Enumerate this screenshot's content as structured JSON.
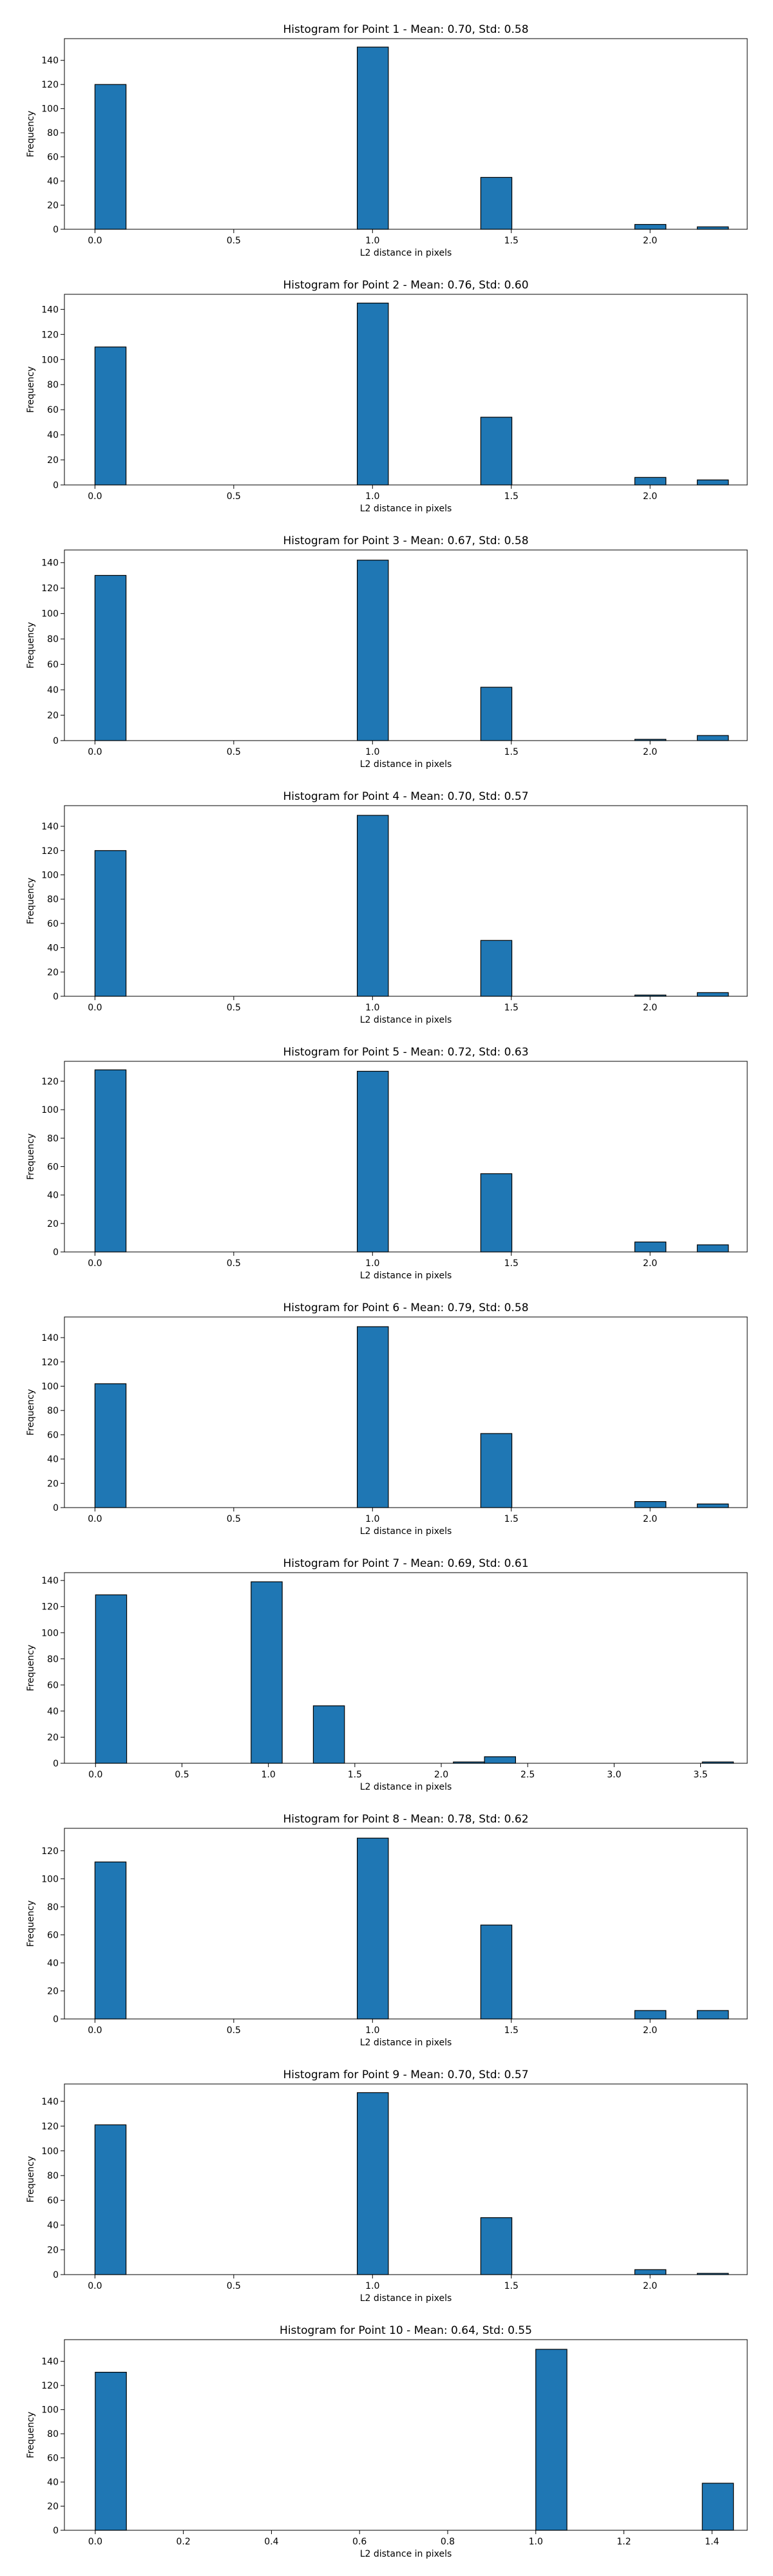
{
  "chart_data": [
    {
      "type": "bar",
      "title": "Histogram for Point 1 - Mean: 0.70, Std: 0.58",
      "xlabel": "L2 distance in pixels",
      "ylabel": "Frequency",
      "xlim": [
        -0.11,
        2.35
      ],
      "ylim": [
        0,
        158
      ],
      "xticks": [
        0.0,
        0.5,
        1.0,
        1.5,
        2.0
      ],
      "xtick_labels": [
        "0.0",
        "0.5",
        "1.0",
        "1.5",
        "2.0"
      ],
      "yticks": [
        0,
        20,
        40,
        60,
        80,
        100,
        120,
        140
      ],
      "yticks_labels": [
        "0",
        "20",
        "40",
        "60",
        "80",
        "100",
        "120",
        "140"
      ],
      "bin_width": 0.112,
      "bins": [
        {
          "x": 0.0,
          "value": 120
        },
        {
          "x": 0.945,
          "value": 151
        },
        {
          "x": 1.39,
          "value": 43
        },
        {
          "x": 1.945,
          "value": 4
        },
        {
          "x": 2.17,
          "value": 2
        }
      ],
      "bar_color": "#1f77b4",
      "grid": false
    },
    {
      "type": "bar",
      "title": "Histogram for Point 2 - Mean: 0.76, Std: 0.60",
      "xlabel": "L2 distance in pixels",
      "ylabel": "Frequency",
      "xlim": [
        -0.11,
        2.35
      ],
      "ylim": [
        0,
        152
      ],
      "xticks": [
        0.0,
        0.5,
        1.0,
        1.5,
        2.0
      ],
      "xtick_labels": [
        "0.0",
        "0.5",
        "1.0",
        "1.5",
        "2.0"
      ],
      "yticks": [
        0,
        20,
        40,
        60,
        80,
        100,
        120,
        140
      ],
      "yticks_labels": [
        "0",
        "20",
        "40",
        "60",
        "80",
        "100",
        "120",
        "140"
      ],
      "bin_width": 0.112,
      "bins": [
        {
          "x": 0.0,
          "value": 110
        },
        {
          "x": 0.945,
          "value": 145
        },
        {
          "x": 1.39,
          "value": 54
        },
        {
          "x": 1.945,
          "value": 6
        },
        {
          "x": 2.17,
          "value": 4
        }
      ],
      "bar_color": "#1f77b4",
      "grid": false
    },
    {
      "type": "bar",
      "title": "Histogram for Point 3 - Mean: 0.67, Std: 0.58",
      "xlabel": "L2 distance in pixels",
      "ylabel": "Frequency",
      "xlim": [
        -0.11,
        2.35
      ],
      "ylim": [
        0,
        150
      ],
      "xticks": [
        0.0,
        0.5,
        1.0,
        1.5,
        2.0
      ],
      "xtick_labels": [
        "0.0",
        "0.5",
        "1.0",
        "1.5",
        "2.0"
      ],
      "yticks": [
        0,
        20,
        40,
        60,
        80,
        100,
        120,
        140
      ],
      "yticks_labels": [
        "0",
        "20",
        "40",
        "60",
        "80",
        "100",
        "120",
        "140"
      ],
      "bin_width": 0.112,
      "bins": [
        {
          "x": 0.0,
          "value": 130
        },
        {
          "x": 0.945,
          "value": 142
        },
        {
          "x": 1.39,
          "value": 42
        },
        {
          "x": 1.945,
          "value": 1
        },
        {
          "x": 2.17,
          "value": 4
        }
      ],
      "bar_color": "#1f77b4",
      "grid": false
    },
    {
      "type": "bar",
      "title": "Histogram for Point 4 - Mean: 0.70, Std: 0.57",
      "xlabel": "L2 distance in pixels",
      "ylabel": "Frequency",
      "xlim": [
        -0.11,
        2.35
      ],
      "ylim": [
        0,
        157
      ],
      "xticks": [
        0.0,
        0.5,
        1.0,
        1.5,
        2.0
      ],
      "xtick_labels": [
        "0.0",
        "0.5",
        "1.0",
        "1.5",
        "2.0"
      ],
      "yticks": [
        0,
        20,
        40,
        60,
        80,
        100,
        120,
        140
      ],
      "yticks_labels": [
        "0",
        "20",
        "40",
        "60",
        "80",
        "100",
        "120",
        "140"
      ],
      "bin_width": 0.112,
      "bins": [
        {
          "x": 0.0,
          "value": 120
        },
        {
          "x": 0.945,
          "value": 149
        },
        {
          "x": 1.39,
          "value": 46
        },
        {
          "x": 1.945,
          "value": 1
        },
        {
          "x": 2.17,
          "value": 3
        }
      ],
      "bar_color": "#1f77b4",
      "grid": false
    },
    {
      "type": "bar",
      "title": "Histogram for Point 5 - Mean: 0.72, Std: 0.63",
      "xlabel": "L2 distance in pixels",
      "ylabel": "Frequency",
      "xlim": [
        -0.11,
        2.35
      ],
      "ylim": [
        0,
        134
      ],
      "xticks": [
        0.0,
        0.5,
        1.0,
        1.5,
        2.0
      ],
      "xtick_labels": [
        "0.0",
        "0.5",
        "1.0",
        "1.5",
        "2.0"
      ],
      "yticks": [
        0,
        20,
        40,
        60,
        80,
        100,
        120
      ],
      "yticks_labels": [
        "0",
        "20",
        "40",
        "60",
        "80",
        "100",
        "120"
      ],
      "bin_width": 0.112,
      "bins": [
        {
          "x": 0.0,
          "value": 128
        },
        {
          "x": 0.945,
          "value": 127
        },
        {
          "x": 1.39,
          "value": 55
        },
        {
          "x": 1.945,
          "value": 7
        },
        {
          "x": 2.17,
          "value": 5
        }
      ],
      "bar_color": "#1f77b4",
      "grid": false
    },
    {
      "type": "bar",
      "title": "Histogram for Point 6 - Mean: 0.79, Std: 0.58",
      "xlabel": "L2 distance in pixels",
      "ylabel": "Frequency",
      "xlim": [
        -0.11,
        2.35
      ],
      "ylim": [
        0,
        157
      ],
      "xticks": [
        0.0,
        0.5,
        1.0,
        1.5,
        2.0
      ],
      "xtick_labels": [
        "0.0",
        "0.5",
        "1.0",
        "1.5",
        "2.0"
      ],
      "yticks": [
        0,
        20,
        40,
        60,
        80,
        100,
        120,
        140
      ],
      "yticks_labels": [
        "0",
        "20",
        "40",
        "60",
        "80",
        "100",
        "120",
        "140"
      ],
      "bin_width": 0.112,
      "bins": [
        {
          "x": 0.0,
          "value": 102
        },
        {
          "x": 0.945,
          "value": 149
        },
        {
          "x": 1.39,
          "value": 61
        },
        {
          "x": 1.945,
          "value": 5
        },
        {
          "x": 2.17,
          "value": 3
        }
      ],
      "bar_color": "#1f77b4",
      "grid": false
    },
    {
      "type": "bar",
      "title": "Histogram for Point 7 - Mean: 0.69, Std: 0.61",
      "xlabel": "L2 distance in pixels",
      "ylabel": "Frequency",
      "xlim": [
        -0.18,
        3.77
      ],
      "ylim": [
        0,
        146
      ],
      "xticks": [
        0.0,
        0.5,
        1.0,
        1.5,
        2.0,
        2.5,
        3.0,
        3.5
      ],
      "xtick_labels": [
        "0.0",
        "0.5",
        "1.0",
        "1.5",
        "2.0",
        "2.5",
        "3.0",
        "3.5"
      ],
      "yticks": [
        0,
        20,
        40,
        60,
        80,
        100,
        120,
        140
      ],
      "yticks_labels": [
        "0",
        "20",
        "40",
        "60",
        "80",
        "100",
        "120",
        "140"
      ],
      "bin_width": 0.18,
      "bins": [
        {
          "x": 0.0,
          "value": 129
        },
        {
          "x": 0.9,
          "value": 139
        },
        {
          "x": 1.26,
          "value": 44
        },
        {
          "x": 2.07,
          "value": 1
        },
        {
          "x": 2.25,
          "value": 5
        },
        {
          "x": 3.51,
          "value": 1
        }
      ],
      "bar_color": "#1f77b4",
      "grid": false
    },
    {
      "type": "bar",
      "title": "Histogram for Point 8 - Mean: 0.78, Std: 0.62",
      "xlabel": "L2 distance in pixels",
      "ylabel": "Frequency",
      "xlim": [
        -0.11,
        2.35
      ],
      "ylim": [
        0,
        136
      ],
      "xticks": [
        0.0,
        0.5,
        1.0,
        1.5,
        2.0
      ],
      "xtick_labels": [
        "0.0",
        "0.5",
        "1.0",
        "1.5",
        "2.0"
      ],
      "yticks": [
        0,
        20,
        40,
        60,
        80,
        100,
        120
      ],
      "yticks_labels": [
        "0",
        "20",
        "40",
        "60",
        "80",
        "100",
        "120"
      ],
      "bin_width": 0.112,
      "bins": [
        {
          "x": 0.0,
          "value": 112
        },
        {
          "x": 0.945,
          "value": 129
        },
        {
          "x": 1.39,
          "value": 67
        },
        {
          "x": 1.945,
          "value": 6
        },
        {
          "x": 2.17,
          "value": 6
        }
      ],
      "bar_color": "#1f77b4",
      "grid": false
    },
    {
      "type": "bar",
      "title": "Histogram for Point 9 - Mean: 0.70, Std: 0.57",
      "xlabel": "L2 distance in pixels",
      "ylabel": "Frequency",
      "xlim": [
        -0.11,
        2.35
      ],
      "ylim": [
        0,
        154
      ],
      "xticks": [
        0.0,
        0.5,
        1.0,
        1.5,
        2.0
      ],
      "xtick_labels": [
        "0.0",
        "0.5",
        "1.0",
        "1.5",
        "2.0"
      ],
      "yticks": [
        0,
        20,
        40,
        60,
        80,
        100,
        120,
        140
      ],
      "yticks_labels": [
        "0",
        "20",
        "40",
        "60",
        "80",
        "100",
        "120",
        "140"
      ],
      "bin_width": 0.112,
      "bins": [
        {
          "x": 0.0,
          "value": 121
        },
        {
          "x": 0.945,
          "value": 147
        },
        {
          "x": 1.39,
          "value": 46
        },
        {
          "x": 1.945,
          "value": 4
        },
        {
          "x": 2.17,
          "value": 1
        }
      ],
      "bar_color": "#1f77b4",
      "grid": false
    },
    {
      "type": "bar",
      "title": "Histogram for Point 10 - Mean: 0.64, Std: 0.55",
      "xlabel": "L2 distance in pixels",
      "ylabel": "Frequency",
      "xlim": [
        -0.07,
        1.48
      ],
      "ylim": [
        0,
        158
      ],
      "xticks": [
        0.0,
        0.2,
        0.4,
        0.6,
        0.8,
        1.0,
        1.2,
        1.4
      ],
      "xtick_labels": [
        "0.0",
        "0.2",
        "0.4",
        "0.6",
        "0.8",
        "1.0",
        "1.2",
        "1.4"
      ],
      "yticks": [
        0,
        20,
        40,
        60,
        80,
        100,
        120,
        140
      ],
      "yticks_labels": [
        "0",
        "20",
        "40",
        "60",
        "80",
        "100",
        "120",
        "140"
      ],
      "bin_width": 0.0707,
      "bins": [
        {
          "x": 0.0,
          "value": 131
        },
        {
          "x": 1.0,
          "value": 150
        },
        {
          "x": 1.378,
          "value": 39
        }
      ],
      "bar_color": "#1f77b4",
      "grid": false
    }
  ]
}
